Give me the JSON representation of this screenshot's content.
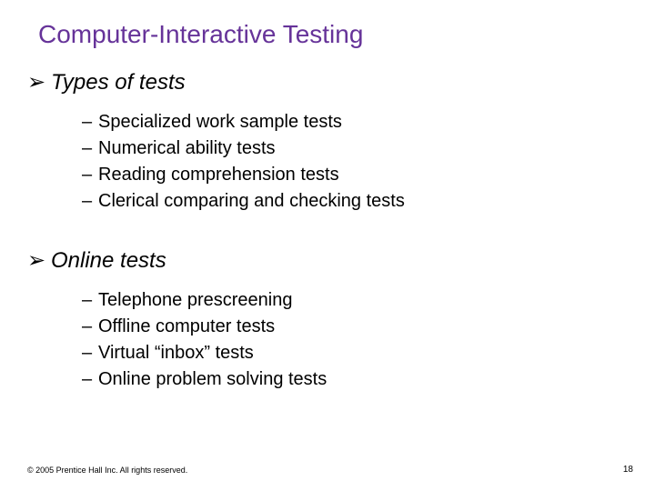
{
  "title": {
    "text": "Computer-Interactive Testing",
    "color": "#663399"
  },
  "bullet_glyph": "➢",
  "dash_glyph": "–",
  "sections": [
    {
      "heading": "Types of tests",
      "items": [
        "Specialized work sample tests",
        "Numerical ability tests",
        "Reading comprehension tests",
        "Clerical comparing and checking tests"
      ]
    },
    {
      "heading": "Online tests",
      "items": [
        "Telephone prescreening",
        "Offline computer tests",
        "Virtual “inbox” tests",
        "Online problem solving tests"
      ]
    }
  ],
  "footer": {
    "copyright": "© 2005 Prentice Hall Inc. All rights reserved.",
    "page_number": "18"
  },
  "layout": {
    "section_tops": [
      76,
      272
    ],
    "sublist_tops": [
      120,
      316
    ]
  }
}
